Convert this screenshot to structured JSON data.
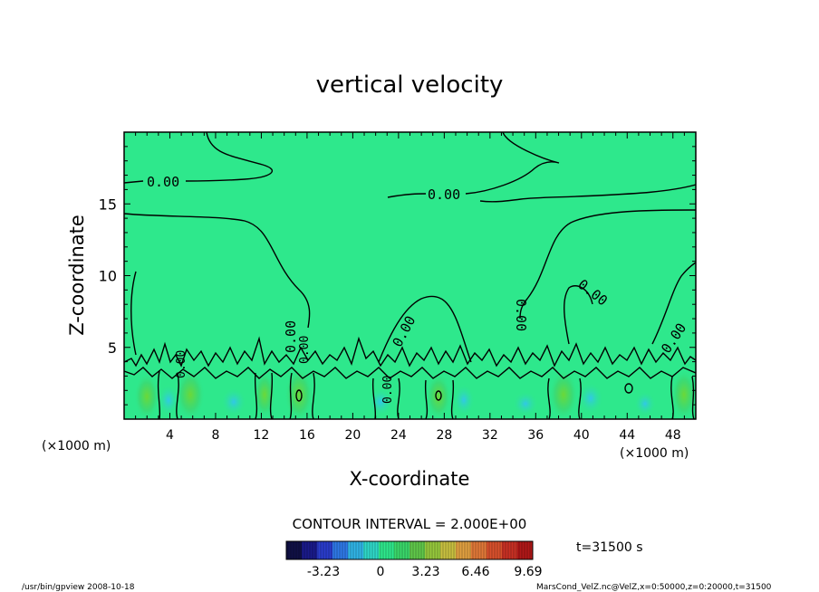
{
  "chart_data": {
    "type": "contour",
    "title": "vertical velocity",
    "xlabel": "X-coordinate",
    "ylabel": "Z-coordinate",
    "x_unit": "(×1000 m)",
    "x_unit_right": "(×1000 m)",
    "xlim": [
      0,
      50
    ],
    "ylim": [
      0,
      20
    ],
    "xticks": [
      4,
      8,
      12,
      16,
      20,
      24,
      28,
      32,
      36,
      40,
      44,
      48
    ],
    "yticks": [
      5,
      10,
      15
    ],
    "contour_interval_label": "CONTOUR INTERVAL = 2.000E+00",
    "contour_labels": [
      "0.00",
      "0.00",
      "0.00",
      "0.00",
      "0.00",
      "0.00",
      "0.00",
      "0.00",
      "0.00",
      "0.00"
    ],
    "background_color": "#2ee88c",
    "colorbar": {
      "colors": [
        "#101045",
        "#1a1a8a",
        "#2a3ccc",
        "#2f78e6",
        "#30b4e6",
        "#2fd8c8",
        "#2ee88c",
        "#3ad86a",
        "#60c84a",
        "#96c83c",
        "#c8c040",
        "#e0a040",
        "#e07838",
        "#d8502c",
        "#c83024",
        "#b01818"
      ],
      "tick_labels": [
        "-3.23",
        "0",
        "3.23",
        "6.46",
        "9.69"
      ]
    },
    "time_label": "t=31500 s",
    "footer_left": "/usr/bin/gpview   2008-10-18",
    "footer_right": "MarsCond_VelZ.nc@VelZ,x=0:50000,z=0:20000,t=31500"
  }
}
